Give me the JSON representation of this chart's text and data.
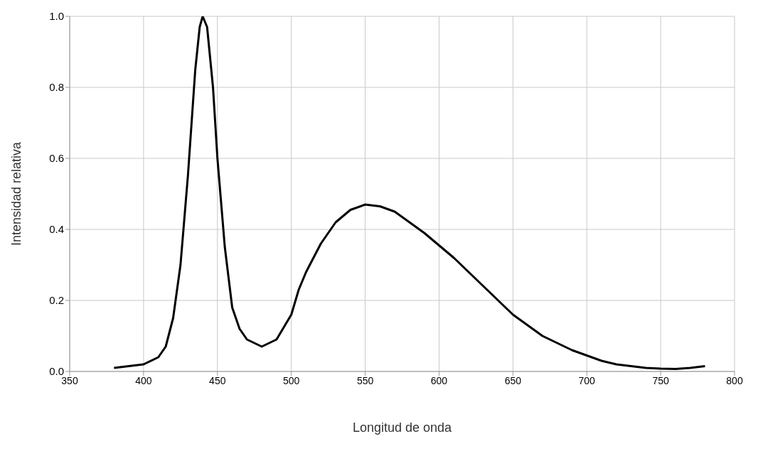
{
  "chart_data": {
    "type": "line",
    "xlabel": "Longitud de onda",
    "ylabel": "Intensidad relativa",
    "x": [
      380,
      400,
      410,
      415,
      420,
      425,
      430,
      435,
      438,
      440,
      443,
      447,
      450,
      455,
      460,
      465,
      470,
      480,
      490,
      500,
      505,
      510,
      520,
      530,
      540,
      550,
      560,
      570,
      580,
      590,
      600,
      610,
      620,
      630,
      640,
      650,
      660,
      670,
      680,
      690,
      700,
      710,
      720,
      730,
      740,
      750,
      760,
      770,
      780
    ],
    "series": [
      {
        "color": "#000000",
        "values": [
          0.01,
          0.02,
          0.04,
          0.07,
          0.15,
          0.3,
          0.55,
          0.85,
          0.97,
          1.0,
          0.97,
          0.8,
          0.6,
          0.35,
          0.18,
          0.12,
          0.09,
          0.07,
          0.09,
          0.16,
          0.23,
          0.28,
          0.36,
          0.42,
          0.455,
          0.47,
          0.465,
          0.45,
          0.42,
          0.39,
          0.355,
          0.32,
          0.28,
          0.24,
          0.2,
          0.16,
          0.13,
          0.1,
          0.08,
          0.06,
          0.045,
          0.03,
          0.02,
          0.015,
          0.01,
          0.008,
          0.007,
          0.01,
          0.015
        ]
      }
    ],
    "xlim": [
      350,
      800
    ],
    "xticks": [
      350,
      400,
      450,
      500,
      550,
      600,
      650,
      700,
      750,
      800
    ],
    "ylim": [
      0,
      1
    ],
    "yticks": [
      {
        "value": 0,
        "label": "0.0"
      },
      {
        "value": 0.2,
        "label": "0.2"
      },
      {
        "value": 0.4,
        "label": "0.4"
      },
      {
        "value": 0.6,
        "label": "0.6"
      },
      {
        "value": 0.8,
        "label": "0.8"
      },
      {
        "value": 1,
        "label": "1.0"
      }
    ],
    "grid": true,
    "marker": "none",
    "line_style": "solid"
  }
}
